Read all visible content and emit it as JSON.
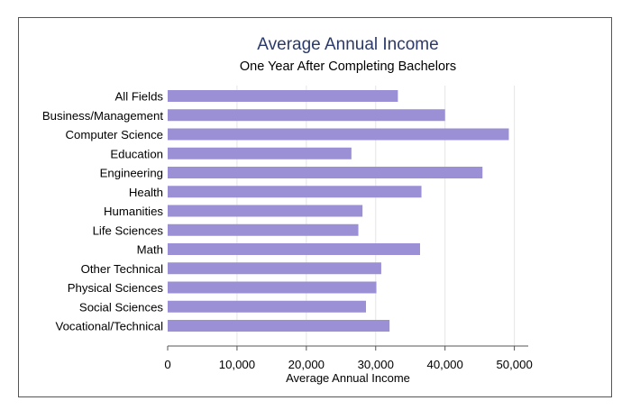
{
  "chart_data": {
    "type": "bar",
    "orientation": "horizontal",
    "title": "Average Annual Income",
    "subtitle": "One Year After Completing Bachelors",
    "xlabel": "Average Annual Income",
    "ylabel": "",
    "xlim": [
      0,
      52000
    ],
    "x_ticks": [
      0,
      10000,
      20000,
      30000,
      40000,
      50000
    ],
    "x_tick_labels": [
      "0",
      "10,000",
      "20,000",
      "30,000",
      "40,000",
      "50,000"
    ],
    "grid": true,
    "categories": [
      "All Fields",
      "Business/Management",
      "Computer Science",
      "Education",
      "Engineering",
      "Health",
      "Humanities",
      "Life Sciences",
      "Math",
      "Other Technical",
      "Physical Sciences",
      "Social Sciences",
      "Vocational/Technical"
    ],
    "values": [
      33200,
      40000,
      49200,
      26500,
      45400,
      36600,
      28100,
      27500,
      36400,
      30800,
      30100,
      28600,
      32000
    ],
    "colors": {
      "bar": "#9b8fd6",
      "title": "#2b3a6b",
      "text": "#000000",
      "grid": "#e6e6e6",
      "axis": "#555555"
    }
  }
}
